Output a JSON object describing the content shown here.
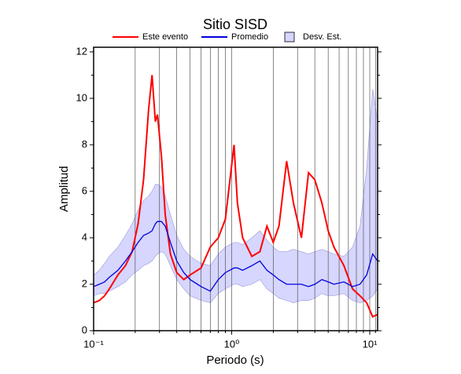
{
  "chart_data": {
    "type": "line",
    "title": "Sitio SISD",
    "x_label": "Periodo (s)",
    "y_label": "Amplitud",
    "x_log": true,
    "xlim": [
      0.1,
      11.4
    ],
    "ylim": [
      0,
      12.2
    ],
    "xticks": [
      {
        "value": 0.1,
        "label": "10⁻¹"
      },
      {
        "value": 1,
        "label": "10⁰"
      },
      {
        "value": 10,
        "label": "10¹"
      }
    ],
    "x_minor_ticks": [
      0.2,
      0.3,
      0.4,
      0.5,
      0.6,
      0.7,
      0.8,
      0.9,
      2,
      3,
      4,
      5,
      6,
      7,
      8,
      9,
      11
    ],
    "yticks": [
      0,
      2,
      4,
      6,
      8,
      10,
      12
    ],
    "y_minor_ticks": [
      1,
      3,
      5,
      7,
      9,
      11
    ],
    "grid": true,
    "x": [
      0.1,
      0.11,
      0.12,
      0.13,
      0.15,
      0.17,
      0.19,
      0.21,
      0.23,
      0.25,
      0.265,
      0.28,
      0.29,
      0.31,
      0.33,
      0.36,
      0.4,
      0.45,
      0.5,
      0.6,
      0.7,
      0.8,
      0.9,
      1.04,
      1.1,
      1.2,
      1.4,
      1.6,
      1.8,
      2.0,
      2.2,
      2.5,
      2.8,
      3.2,
      3.6,
      4.0,
      4.5,
      5.0,
      5.5,
      6.5,
      7.5,
      8.5,
      9.5,
      10.5,
      11.4
    ],
    "band": {
      "name": "Desv. Est.",
      "color": "#d6d6ff",
      "edge": "#9a9ad8",
      "upper": [
        2.4,
        2.6,
        2.9,
        3.2,
        3.6,
        4.1,
        4.6,
        5.2,
        5.6,
        5.8,
        6.0,
        6.3,
        6.3,
        6.2,
        5.8,
        5.0,
        4.1,
        3.5,
        3.2,
        2.9,
        2.8,
        3.3,
        3.6,
        3.8,
        3.8,
        3.7,
        4.0,
        4.3,
        3.9,
        3.6,
        3.4,
        3.4,
        3.5,
        3.4,
        3.3,
        3.4,
        3.5,
        3.4,
        3.3,
        3.2,
        3.6,
        4.5,
        7.0,
        10.4,
        9.0
      ],
      "lower": [
        1.5,
        1.6,
        1.6,
        1.7,
        1.9,
        2.1,
        2.4,
        2.6,
        2.8,
        2.9,
        3.0,
        3.2,
        3.3,
        3.4,
        3.3,
        2.8,
        2.2,
        1.8,
        1.5,
        1.3,
        1.2,
        1.6,
        1.8,
        2.0,
        2.0,
        1.9,
        2.0,
        2.2,
        1.8,
        1.6,
        1.4,
        1.3,
        1.2,
        1.3,
        1.3,
        1.4,
        1.6,
        1.5,
        1.5,
        1.6,
        1.3,
        1.2,
        1.3,
        1.5,
        1.8
      ]
    },
    "series": [
      {
        "name": "Este evento",
        "color": "#ff0000",
        "values": [
          1.2,
          1.3,
          1.5,
          1.8,
          2.4,
          2.8,
          3.4,
          4.6,
          6.5,
          9.5,
          11.0,
          9.0,
          9.3,
          7.5,
          5.0,
          3.3,
          2.5,
          2.2,
          2.4,
          2.7,
          3.6,
          4.0,
          4.8,
          8.0,
          5.5,
          4.0,
          3.2,
          3.4,
          4.5,
          3.8,
          4.5,
          7.3,
          5.5,
          4.0,
          6.8,
          6.5,
          5.5,
          4.3,
          3.6,
          2.8,
          1.8,
          1.5,
          1.2,
          0.6,
          0.7
        ]
      },
      {
        "name": "Promedio",
        "color": "#0000dd",
        "values": [
          1.9,
          2.0,
          2.1,
          2.3,
          2.6,
          3.0,
          3.4,
          3.8,
          4.1,
          4.2,
          4.3,
          4.6,
          4.7,
          4.7,
          4.5,
          3.8,
          3.0,
          2.5,
          2.2,
          1.9,
          1.7,
          2.2,
          2.5,
          2.7,
          2.7,
          2.6,
          2.8,
          3.0,
          2.6,
          2.4,
          2.2,
          2.0,
          2.0,
          2.0,
          1.9,
          2.0,
          2.2,
          2.1,
          2.0,
          2.1,
          1.9,
          2.0,
          2.4,
          3.3,
          3.0
        ]
      }
    ]
  }
}
